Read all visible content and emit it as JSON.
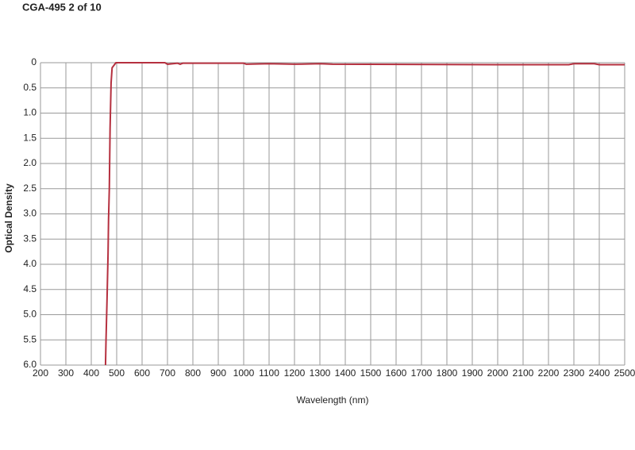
{
  "chart_data": {
    "type": "line",
    "title": "CGA-495 2 of 10",
    "xlabel": "Wavelength (nm)",
    "ylabel": "Optical Density",
    "x": [
      456,
      458,
      462,
      466,
      468,
      471,
      474,
      478,
      482,
      497,
      690,
      700,
      740,
      750,
      760,
      1000,
      1010,
      1100,
      1200,
      1300,
      1350,
      2000,
      2280,
      2300,
      2380,
      2400,
      2500
    ],
    "values": [
      6.0,
      5.5,
      4.7,
      3.8,
      3.1,
      2.5,
      1.3,
      0.4,
      0.1,
      0.0,
      0.0,
      0.03,
      0.01,
      0.03,
      0.01,
      0.01,
      0.03,
      0.02,
      0.03,
      0.02,
      0.03,
      0.04,
      0.04,
      0.02,
      0.02,
      0.04,
      0.04
    ],
    "color": "#b5303f",
    "xlim": [
      200,
      2500
    ],
    "xticks": [
      200,
      300,
      400,
      500,
      600,
      700,
      800,
      900,
      1000,
      1100,
      1200,
      1300,
      1400,
      1500,
      1600,
      1700,
      1800,
      1900,
      2000,
      2100,
      2200,
      2300,
      2400,
      2500
    ],
    "ylim": [
      0,
      6
    ],
    "y_inverted": true,
    "yticks": [
      0,
      0.5,
      {
        "value": 1,
        "label": "1.0"
      },
      1.5,
      {
        "value": 2,
        "label": "2.0"
      },
      2.5,
      {
        "value": 3,
        "label": "3.0"
      },
      3.5,
      {
        "value": 4,
        "label": "4.0"
      },
      4.5,
      {
        "value": 5,
        "label": "5.0"
      },
      5.5,
      {
        "value": 6,
        "label": "6.0"
      }
    ],
    "grid": true
  }
}
